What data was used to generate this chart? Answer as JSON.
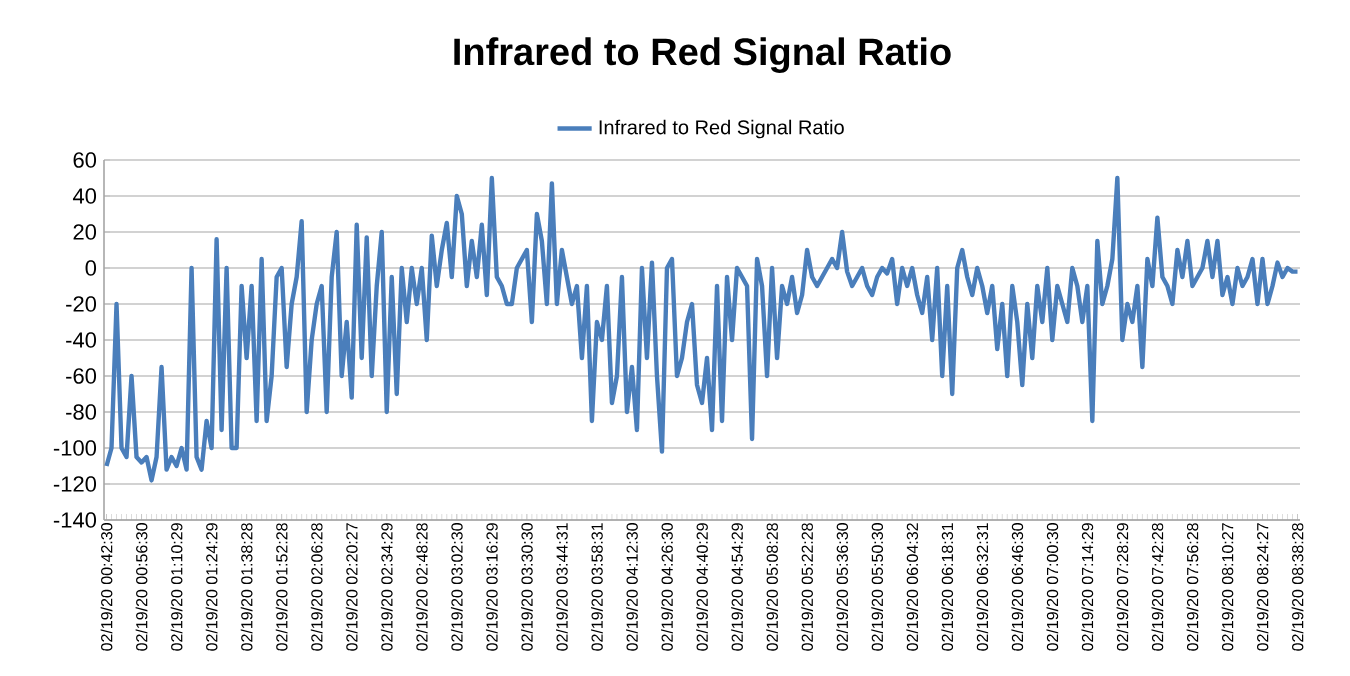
{
  "chart_data": {
    "type": "line",
    "title": "Infrared to Red Signal Ratio",
    "legend": "top",
    "grid": "y",
    "marker": "none",
    "line_style": "solid",
    "ylim": [
      -140,
      60
    ],
    "yticks": [
      -140,
      -120,
      -100,
      -80,
      -60,
      -40,
      -20,
      0,
      20,
      40,
      60
    ],
    "categories": [
      "02/19/20 00:42:30",
      null,
      null,
      null,
      null,
      null,
      null,
      "02/19/20 00:56:30",
      null,
      null,
      null,
      null,
      null,
      null,
      "02/19/20 01:10:29",
      null,
      null,
      null,
      null,
      null,
      null,
      "02/19/20 01:24:29",
      null,
      null,
      null,
      null,
      null,
      null,
      "02/19/20 01:38:28",
      null,
      null,
      null,
      null,
      null,
      null,
      "02/19/20 01:52:28",
      null,
      null,
      null,
      null,
      null,
      null,
      "02/19/20 02:06:28",
      null,
      null,
      null,
      null,
      null,
      null,
      "02/19/20 02:20:27",
      null,
      null,
      null,
      null,
      null,
      null,
      "02/19/20 02:34:29",
      null,
      null,
      null,
      null,
      null,
      null,
      "02/19/20 02:48:28",
      null,
      null,
      null,
      null,
      null,
      null,
      "02/19/20 03:02:30",
      null,
      null,
      null,
      null,
      null,
      null,
      "02/19/20 03:16:29",
      null,
      null,
      null,
      null,
      null,
      null,
      "02/19/20 03:30:30",
      null,
      null,
      null,
      null,
      null,
      null,
      "02/19/20 03:44:31",
      null,
      null,
      null,
      null,
      null,
      null,
      "02/19/20 03:58:31",
      null,
      null,
      null,
      null,
      null,
      null,
      "02/19/20 04:12:30",
      null,
      null,
      null,
      null,
      null,
      null,
      "02/19/20 04:26:30",
      null,
      null,
      null,
      null,
      null,
      null,
      "02/19/20 04:40:29",
      null,
      null,
      null,
      null,
      null,
      null,
      "02/19/20 04:54:29",
      null,
      null,
      null,
      null,
      null,
      null,
      "02/19/20 05:08:28",
      null,
      null,
      null,
      null,
      null,
      null,
      "02/19/20 05:22:28",
      null,
      null,
      null,
      null,
      null,
      null,
      "02/19/20 05:36:30",
      null,
      null,
      null,
      null,
      null,
      null,
      "02/19/20 05:50:30",
      null,
      null,
      null,
      null,
      null,
      null,
      "02/19/20 06:04:32",
      null,
      null,
      null,
      null,
      null,
      null,
      "02/19/20 06:18:31",
      null,
      null,
      null,
      null,
      null,
      null,
      "02/19/20 06:32:31",
      null,
      null,
      null,
      null,
      null,
      null,
      "02/19/20 06:46:30",
      null,
      null,
      null,
      null,
      null,
      null,
      "02/19/20 07:00:30",
      null,
      null,
      null,
      null,
      null,
      null,
      "02/19/20 07:14:29",
      null,
      null,
      null,
      null,
      null,
      null,
      "02/19/20 07:28:29",
      null,
      null,
      null,
      null,
      null,
      null,
      "02/19/20 07:42:28",
      null,
      null,
      null,
      null,
      null,
      null,
      "02/19/20 07:56:28",
      null,
      null,
      null,
      null,
      null,
      null,
      "02/19/20 08:10:27",
      null,
      null,
      null,
      null,
      null,
      null,
      "02/19/20 08:24:27",
      null,
      null,
      null,
      null,
      null,
      null,
      "02/19/20 08:38:28"
    ],
    "series": [
      {
        "name": "Infrared to Red Signal Ratio",
        "color": "#4a7ebb",
        "values": [
          -110,
          -100,
          -20,
          -100,
          -105,
          -60,
          -105,
          -108,
          -105,
          -118,
          -105,
          -55,
          -112,
          -105,
          -110,
          -100,
          -112,
          0,
          -105,
          -112,
          -85,
          -100,
          16,
          -90,
          0,
          -100,
          -100,
          -10,
          -50,
          -10,
          -85,
          5,
          -85,
          -60,
          -5,
          0,
          -55,
          -20,
          -5,
          26,
          -80,
          -40,
          -20,
          -10,
          -80,
          -5,
          20,
          -60,
          -30,
          -72,
          24,
          -50,
          17,
          -60,
          -10,
          20,
          -80,
          -5,
          -70,
          0,
          -30,
          0,
          -20,
          0,
          -40,
          18,
          -10,
          10,
          25,
          -5,
          40,
          30,
          -10,
          15,
          -5,
          24,
          -15,
          50,
          -5,
          -10,
          -20,
          -20,
          0,
          5,
          10,
          -30,
          30,
          15,
          -20,
          47,
          -20,
          10,
          -5,
          -20,
          -10,
          -50,
          -10,
          -85,
          -30,
          -40,
          -10,
          -75,
          -60,
          -5,
          -80,
          -55,
          -90,
          0,
          -50,
          3,
          -60,
          -102,
          0,
          5,
          -60,
          -50,
          -30,
          -20,
          -65,
          -75,
          -50,
          -90,
          -10,
          -85,
          -5,
          -40,
          0,
          -5,
          -10,
          -95,
          5,
          -10,
          -60,
          0,
          -50,
          -10,
          -20,
          -5,
          -25,
          -15,
          10,
          -5,
          -10,
          -5,
          0,
          5,
          0,
          20,
          -2,
          -10,
          -5,
          0,
          -10,
          -15,
          -5,
          0,
          -3,
          5,
          -20,
          0,
          -10,
          0,
          -15,
          -25,
          -5,
          -40,
          0,
          -60,
          -10,
          -70,
          0,
          10,
          -5,
          -15,
          0,
          -10,
          -25,
          -10,
          -45,
          -20,
          -60,
          -10,
          -30,
          -65,
          -20,
          -50,
          -10,
          -30,
          0,
          -40,
          -10,
          -20,
          -30,
          0,
          -10,
          -30,
          -10,
          -85,
          15,
          -20,
          -10,
          5,
          50,
          -40,
          -20,
          -30,
          -10,
          -55,
          5,
          -10,
          28,
          -5,
          -10,
          -20,
          10,
          -5,
          15,
          -10,
          -5,
          0,
          15,
          -5,
          15,
          -15,
          -5,
          -20,
          0,
          -10,
          -5,
          5,
          -20,
          5,
          -20,
          -10,
          3,
          -5,
          0,
          -2,
          -2
        ]
      }
    ]
  }
}
